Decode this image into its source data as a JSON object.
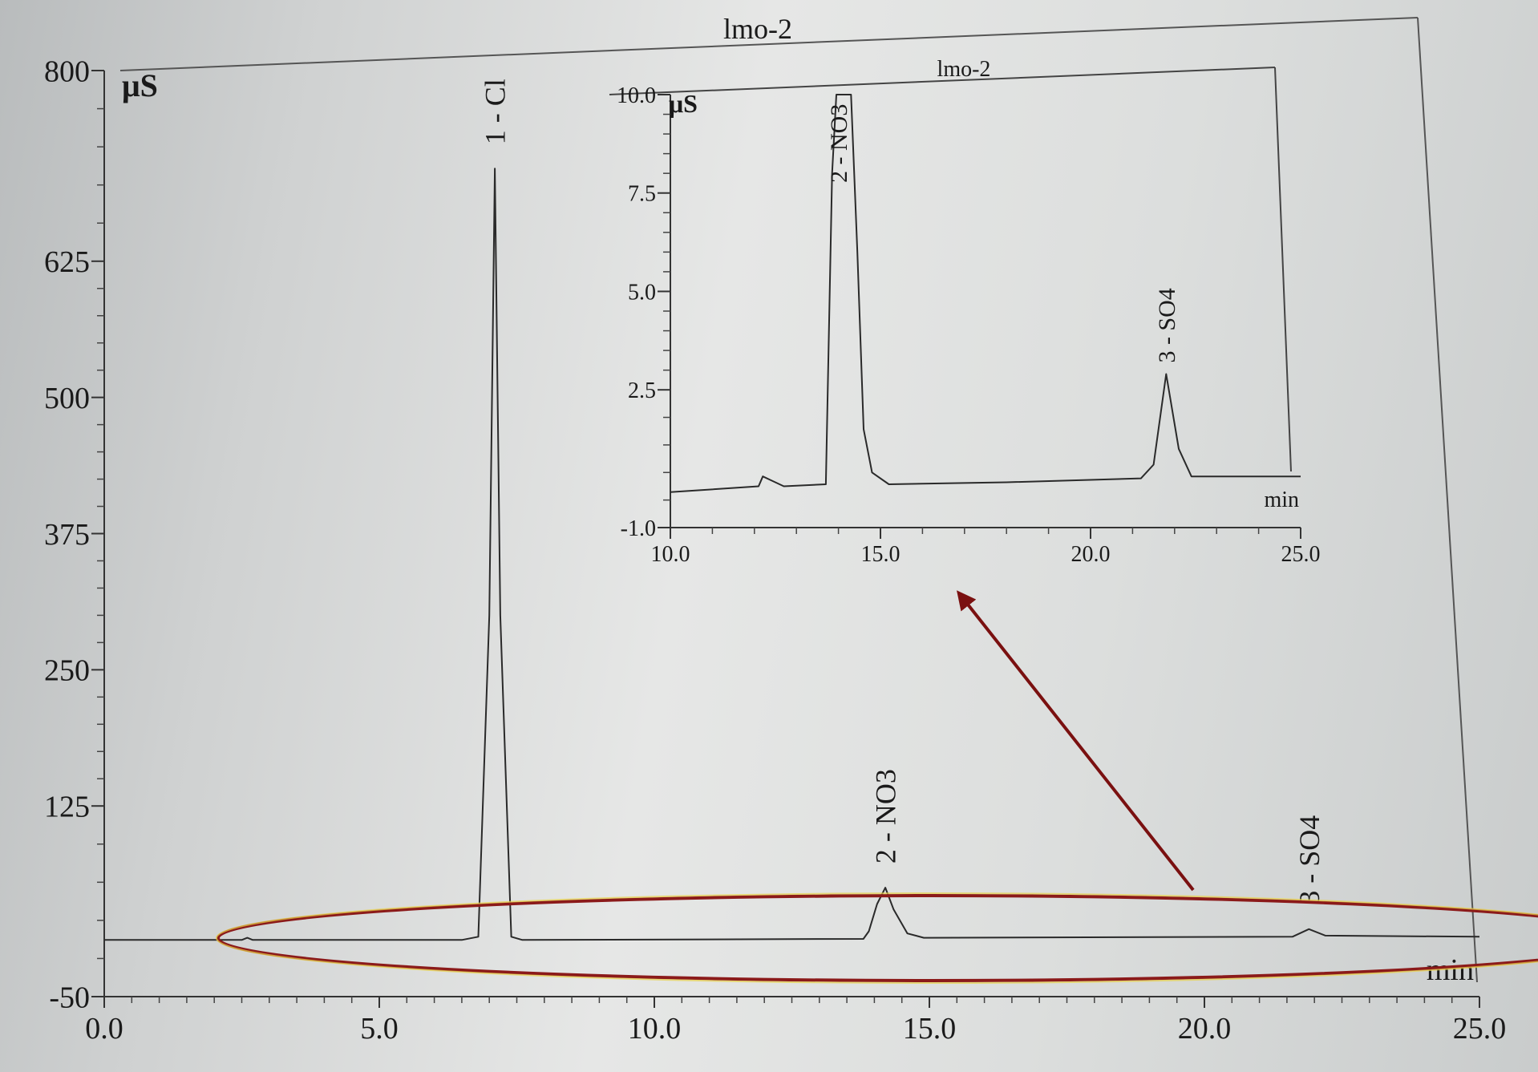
{
  "chart_data": [
    {
      "type": "line",
      "title": "lmo-2",
      "unit_label": "μS",
      "xlabel": "min",
      "ylabel": "",
      "xlim": [
        0,
        25
      ],
      "ylim": [
        -50,
        800
      ],
      "x_ticks": [
        "0.0",
        "5.0",
        "10.0",
        "15.0",
        "20.0",
        "25.0"
      ],
      "y_ticks": [
        "-50",
        "125",
        "250",
        "375",
        "500",
        "625",
        "800"
      ],
      "grid": false,
      "series": [
        {
          "values": [
            [
              0,
              2
            ],
            [
              2.5,
              2
            ],
            [
              2.6,
              4
            ],
            [
              2.7,
              2
            ],
            [
              6.5,
              2
            ],
            [
              6.8,
              5
            ],
            [
              7.0,
              300
            ],
            [
              7.1,
              710
            ],
            [
              7.2,
              300
            ],
            [
              7.4,
              5
            ],
            [
              7.6,
              2
            ],
            [
              13.8,
              3
            ],
            [
              13.9,
              10
            ],
            [
              14.05,
              35
            ],
            [
              14.2,
              50
            ],
            [
              14.35,
              30
            ],
            [
              14.6,
              8
            ],
            [
              14.9,
              4
            ],
            [
              21.6,
              5
            ],
            [
              21.9,
              12
            ],
            [
              22.2,
              6
            ],
            [
              25,
              5
            ]
          ]
        }
      ],
      "peaks": [
        {
          "label": "1 - Cl",
          "x": 7.1
        },
        {
          "label": "2 - NO3",
          "x": 14.2
        },
        {
          "label": "3 - SO4",
          "x": 21.9
        }
      ]
    },
    {
      "type": "line",
      "title": "lmo-2",
      "unit_label": "μS",
      "xlabel": "min",
      "ylabel": "",
      "xlim": [
        10,
        25
      ],
      "ylim": [
        -1,
        10
      ],
      "x_ticks": [
        "10.0",
        "15.0",
        "20.0",
        "25.0"
      ],
      "y_ticks": [
        "-1.0",
        "2.5",
        "5.0",
        "7.5",
        "10.0"
      ],
      "grid": false,
      "series": [
        {
          "values": [
            [
              10,
              -0.1
            ],
            [
              12.1,
              0.05
            ],
            [
              12.2,
              0.3
            ],
            [
              12.4,
              0.2
            ],
            [
              12.7,
              0.05
            ],
            [
              13.7,
              0.1
            ],
            [
              13.85,
              8
            ],
            [
              13.95,
              10
            ],
            [
              14.1,
              10
            ],
            [
              14.3,
              10
            ],
            [
              14.45,
              6
            ],
            [
              14.6,
              1.5
            ],
            [
              14.8,
              0.4
            ],
            [
              15.2,
              0.1
            ],
            [
              18,
              0.15
            ],
            [
              21.2,
              0.25
            ],
            [
              21.5,
              0.6
            ],
            [
              21.8,
              2.9
            ],
            [
              22.1,
              1
            ],
            [
              22.4,
              0.3
            ],
            [
              25,
              0.3
            ]
          ]
        }
      ],
      "peaks": [
        {
          "label": "2 - NO3",
          "x": 14.0
        },
        {
          "label": "3 - SO4",
          "x": 21.8
        }
      ]
    }
  ],
  "colors": {
    "trace": "#2a2a2a",
    "highlight_ellipse": "#8b1a1a",
    "arrow": "#7a1010"
  }
}
